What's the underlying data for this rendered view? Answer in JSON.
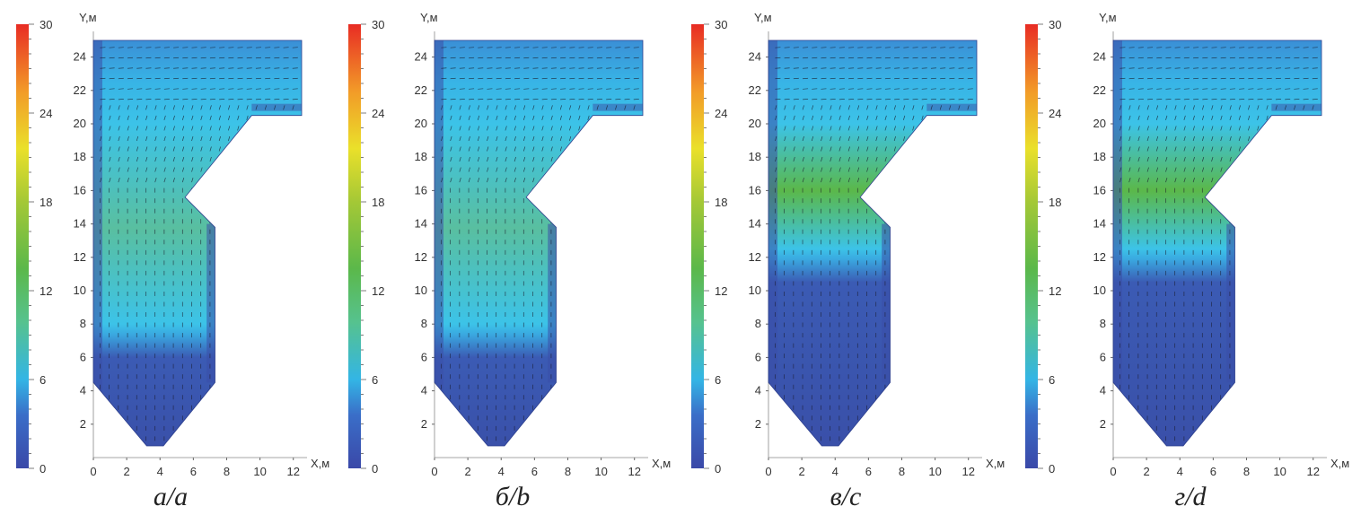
{
  "chart_data": [
    {
      "type": "heatmap",
      "caption": "а/а",
      "xlabel": "X,м",
      "ylabel": "Y,м",
      "xlim": [
        0,
        12.5
      ],
      "ylim": [
        0,
        25
      ],
      "x_ticks": [
        0,
        2,
        4,
        6,
        8,
        10,
        12
      ],
      "y_ticks": [
        2,
        4,
        6,
        8,
        10,
        12,
        14,
        16,
        18,
        20,
        22,
        24
      ],
      "colorbar": {
        "min": 0,
        "max": 30,
        "ticks": [
          0,
          6,
          12,
          18,
          24,
          30
        ]
      },
      "jet_band": [
        7.5,
        20
      ],
      "jet_peak_value": 12,
      "colors": {
        "low": "#3a4fa8",
        "mid": "#3cc3e8",
        "high": "#64b450"
      }
    },
    {
      "type": "heatmap",
      "caption": "б/b",
      "xlabel": "X,м",
      "ylabel": "Y,м",
      "xlim": [
        0,
        12.5
      ],
      "ylim": [
        0,
        25
      ],
      "x_ticks": [
        0,
        2,
        4,
        6,
        8,
        10,
        12
      ],
      "y_ticks": [
        2,
        4,
        6,
        8,
        10,
        12,
        14,
        16,
        18,
        20,
        22,
        24
      ],
      "colorbar": {
        "min": 0,
        "max": 30,
        "ticks": [
          0,
          6,
          12,
          18,
          24,
          30
        ]
      },
      "jet_band": [
        7.5,
        20
      ],
      "jet_peak_value": 12,
      "colors": {
        "low": "#3a4fa8",
        "mid": "#3cc3e8",
        "high": "#64b450"
      }
    },
    {
      "type": "heatmap",
      "caption": "в/c",
      "xlabel": "X,м",
      "ylabel": "Y,м",
      "xlim": [
        0,
        12.5
      ],
      "ylim": [
        0,
        25
      ],
      "x_ticks": [
        0,
        2,
        4,
        6,
        8,
        10,
        12
      ],
      "y_ticks": [
        2,
        4,
        6,
        8,
        10,
        12,
        14,
        16,
        18,
        20,
        22,
        24
      ],
      "colorbar": {
        "min": 0,
        "max": 30,
        "ticks": [
          0,
          6,
          12,
          18,
          24,
          30
        ]
      },
      "jet_band": [
        12,
        20
      ],
      "jet_peak_value": 14,
      "colors": {
        "low": "#3a4fa8",
        "mid": "#3cc3e8",
        "high": "#64b450"
      }
    },
    {
      "type": "heatmap",
      "caption": "г/d",
      "xlabel": "X,м",
      "ylabel": "Y,м",
      "xlim": [
        0,
        12.5
      ],
      "ylim": [
        0,
        25
      ],
      "x_ticks": [
        0,
        2,
        4,
        6,
        8,
        10,
        12
      ],
      "y_ticks": [
        2,
        4,
        6,
        8,
        10,
        12,
        14,
        16,
        18,
        20,
        22,
        24
      ],
      "colorbar": {
        "min": 0,
        "max": 30,
        "ticks": [
          0,
          6,
          12,
          18,
          24,
          30
        ]
      },
      "jet_band": [
        12,
        20
      ],
      "jet_peak_value": 16,
      "colors": {
        "low": "#3a4fa8",
        "mid": "#3cc3e8",
        "high": "#64b450"
      }
    }
  ]
}
